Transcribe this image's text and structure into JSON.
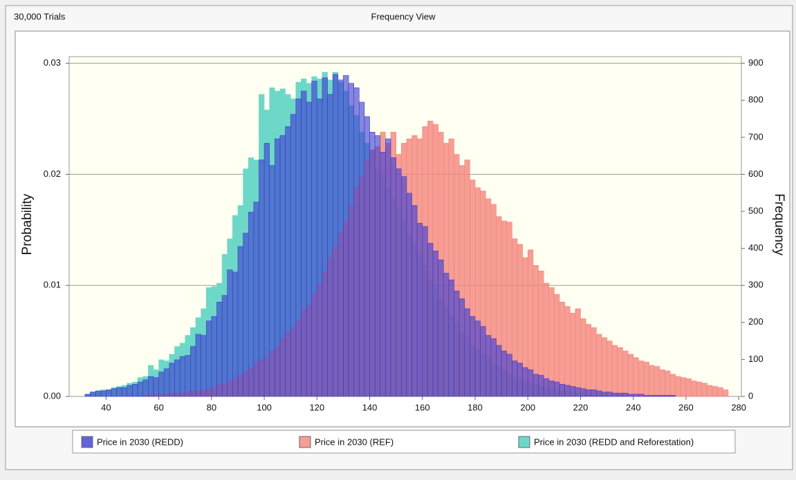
{
  "chart_data": {
    "type": "histogram",
    "trials_label": "30,000 Trials",
    "title": "Frequency View",
    "y_label": "Probability",
    "y2_label": "Frequency",
    "bins": [
      32,
      34,
      36,
      38,
      40,
      42,
      44,
      46,
      48,
      50,
      52,
      54,
      56,
      58,
      60,
      62,
      64,
      66,
      68,
      70,
      72,
      74,
      76,
      78,
      80,
      82,
      84,
      86,
      88,
      90,
      92,
      94,
      96,
      98,
      100,
      102,
      104,
      106,
      108,
      110,
      112,
      114,
      116,
      118,
      120,
      122,
      124,
      126,
      128,
      130,
      132,
      134,
      136,
      138,
      140,
      142,
      144,
      146,
      148,
      150,
      152,
      154,
      156,
      158,
      160,
      162,
      164,
      166,
      168,
      170,
      172,
      174,
      176,
      178,
      180,
      182,
      184,
      186,
      188,
      190,
      192,
      194,
      196,
      198,
      200,
      202,
      204,
      206,
      208,
      210,
      212,
      214,
      216,
      218,
      220,
      222,
      224,
      226,
      228,
      230,
      232,
      234,
      236,
      238,
      240,
      242,
      244,
      246,
      248,
      250,
      252,
      254,
      256,
      258,
      260,
      262,
      264,
      266,
      268,
      270,
      272,
      274,
      276
    ],
    "series": [
      {
        "name": "Price in 2030 (REDD and Reforestation)",
        "color": "#6ed8c8",
        "opacity": 1,
        "values": [
          0.0002,
          0.0004,
          0.0005,
          0.0006,
          0.0006,
          0.0008,
          0.0009,
          0.001,
          0.0012,
          0.0013,
          0.0017,
          0.0018,
          0.0028,
          0.0024,
          0.0033,
          0.0032,
          0.0038,
          0.0045,
          0.0048,
          0.0055,
          0.0062,
          0.0071,
          0.0079,
          0.0098,
          0.0099,
          0.0102,
          0.0128,
          0.0142,
          0.0163,
          0.0172,
          0.0205,
          0.0215,
          0.0213,
          0.0272,
          0.0258,
          0.0278,
          0.0275,
          0.0277,
          0.0272,
          0.0268,
          0.0283,
          0.0286,
          0.0282,
          0.0288,
          0.0286,
          0.0292,
          0.0285,
          0.0292,
          0.0283,
          0.0275,
          0.0262,
          0.0253,
          0.0238,
          0.0228,
          0.0222,
          0.0205,
          0.0198,
          0.0188,
          0.0178,
          0.017,
          0.0158,
          0.0147,
          0.0138,
          0.0128,
          0.0118,
          0.0105,
          0.0098,
          0.0088,
          0.0081,
          0.0073,
          0.0067,
          0.0058,
          0.0053,
          0.0046,
          0.0042,
          0.0038,
          0.0034,
          0.003,
          0.0027,
          0.0024,
          0.002,
          0.0018,
          0.0016,
          0.0014,
          0.0012,
          0.0011,
          0.0009,
          0.0008,
          0.0007,
          0.0006,
          0.0005,
          0.0005,
          0.0004,
          0.0003,
          0.0003,
          0.0002,
          0.0002,
          0.0002,
          0.0001,
          0.0001,
          0.0001,
          0.0001,
          0,
          0,
          0,
          0,
          0,
          0,
          0,
          0,
          0,
          0,
          0,
          0,
          0,
          0,
          0,
          0,
          0,
          0,
          0,
          0
        ]
      },
      {
        "name": "Price in 2030 (REF)",
        "color": "#f4847c",
        "opacity": 0.8,
        "values": [
          0,
          0,
          0,
          0,
          0,
          0,
          0,
          0.0001,
          0.0001,
          0.0001,
          0.0001,
          0.0001,
          0.0002,
          0.0002,
          0.0002,
          0.0002,
          0.0003,
          0.0003,
          0.0003,
          0.0004,
          0.0005,
          0.0005,
          0.0006,
          0.0007,
          0.0008,
          0.0011,
          0.0012,
          0.0014,
          0.0016,
          0.0019,
          0.0023,
          0.0025,
          0.0031,
          0.0033,
          0.0035,
          0.0041,
          0.0045,
          0.0052,
          0.0058,
          0.0062,
          0.0069,
          0.0078,
          0.0082,
          0.0093,
          0.0102,
          0.0112,
          0.0125,
          0.0135,
          0.0148,
          0.0158,
          0.0172,
          0.0188,
          0.0198,
          0.0213,
          0.0222,
          0.0225,
          0.0238,
          0.0228,
          0.0238,
          0.0218,
          0.0228,
          0.0232,
          0.0235,
          0.0232,
          0.0243,
          0.0248,
          0.0245,
          0.0238,
          0.0228,
          0.0232,
          0.0218,
          0.0208,
          0.0213,
          0.0195,
          0.0188,
          0.0185,
          0.0178,
          0.0173,
          0.0162,
          0.0158,
          0.0157,
          0.0142,
          0.0137,
          0.0125,
          0.0132,
          0.0118,
          0.0113,
          0.0102,
          0.0098,
          0.0092,
          0.0085,
          0.0081,
          0.0075,
          0.0079,
          0.007,
          0.0065,
          0.0062,
          0.0056,
          0.0053,
          0.005,
          0.0046,
          0.0044,
          0.0041,
          0.0038,
          0.0035,
          0.0032,
          0.0031,
          0.0028,
          0.0027,
          0.0024,
          0.0023,
          0.002,
          0.0018,
          0.0017,
          0.0016,
          0.0014,
          0.0013,
          0.0012,
          0.001,
          0.0009,
          0.0008,
          0.0006
        ]
      },
      {
        "name": "Price in 2030  (REDD)",
        "color": "#3c3cd0",
        "opacity": 0.62,
        "values": [
          0.0002,
          0.0004,
          0.0005,
          0.0005,
          0.0006,
          0.0007,
          0.0008,
          0.0008,
          0.001,
          0.0011,
          0.0013,
          0.0015,
          0.0018,
          0.0017,
          0.0022,
          0.0025,
          0.003,
          0.0033,
          0.0036,
          0.0037,
          0.0045,
          0.0056,
          0.0055,
          0.0068,
          0.0072,
          0.0085,
          0.0091,
          0.0114,
          0.0112,
          0.0135,
          0.0147,
          0.0166,
          0.0175,
          0.0213,
          0.0228,
          0.0208,
          0.0232,
          0.0235,
          0.0243,
          0.0254,
          0.0268,
          0.0275,
          0.0265,
          0.0284,
          0.0268,
          0.0287,
          0.0272,
          0.029,
          0.0285,
          0.0289,
          0.0282,
          0.0278,
          0.0265,
          0.0252,
          0.0238,
          0.0235,
          0.022,
          0.0232,
          0.0215,
          0.0205,
          0.0198,
          0.0183,
          0.0172,
          0.0156,
          0.0153,
          0.0138,
          0.0131,
          0.0123,
          0.0111,
          0.0105,
          0.0095,
          0.0088,
          0.0079,
          0.0072,
          0.0068,
          0.0063,
          0.0055,
          0.0052,
          0.0046,
          0.0041,
          0.0038,
          0.0032,
          0.003,
          0.0026,
          0.0024,
          0.002,
          0.0019,
          0.0016,
          0.0014,
          0.0013,
          0.0011,
          0.001,
          0.0009,
          0.0008,
          0.0007,
          0.0006,
          0.0006,
          0.0005,
          0.0004,
          0.0004,
          0.0003,
          0.0003,
          0.0003,
          0.0002,
          0.0002,
          0.0002,
          0.0001,
          0.0001,
          0.0001,
          0.0001,
          0.0001,
          0.0001,
          0,
          0,
          0,
          0,
          0,
          0,
          0,
          0,
          0,
          0
        ]
      }
    ],
    "legend_order": [
      2,
      1,
      0
    ],
    "xlim": [
      26,
      281
    ],
    "xticks": [
      40,
      60,
      80,
      100,
      120,
      140,
      160,
      180,
      200,
      220,
      240,
      260,
      280
    ],
    "ylim": [
      0,
      0.0306
    ],
    "yticks": [
      {
        "value": 0,
        "label": "0.00"
      },
      0.01,
      0.02,
      0.03
    ],
    "y2lim": [
      0,
      918
    ],
    "y2ticks": [
      0,
      100,
      200,
      300,
      400,
      500,
      600,
      700,
      800,
      900
    ],
    "grid": true
  }
}
